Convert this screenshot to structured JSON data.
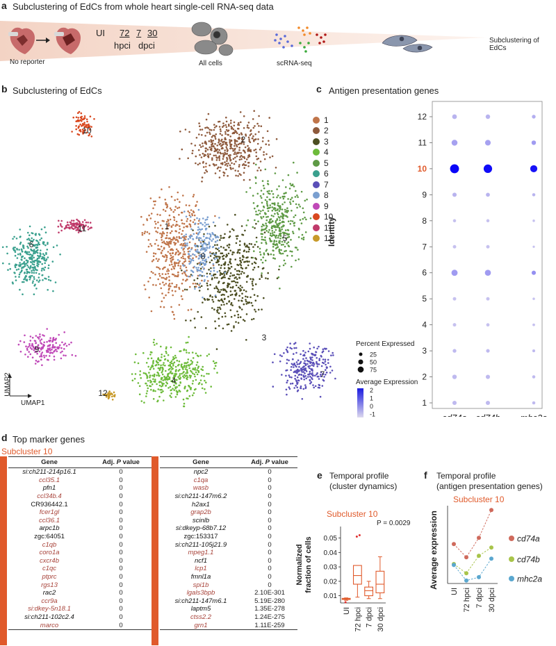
{
  "panel_a": {
    "letter": "a",
    "title": "Subclustering of EdCs from whole heart single-cell RNA-seq data",
    "no_reporter": "No reporter",
    "ui": "UI",
    "hpci_label": "hpci",
    "dpci_label": "dpci",
    "hpci_val": "72",
    "dpci_vals": [
      "7",
      "30"
    ],
    "all_cells": "All cells",
    "scrna": "scRNA-seq",
    "end_label": "Subclustering of EdCs"
  },
  "panel_b": {
    "letter": "b",
    "title": "Subclustering of EdCs",
    "umap1": "UMAP1",
    "umap2": "UMAP2",
    "clusters": [
      {
        "id": "1",
        "color": "#c0754a"
      },
      {
        "id": "2",
        "color": "#8e5a3c"
      },
      {
        "id": "3",
        "color": "#4c4e22"
      },
      {
        "id": "4",
        "color": "#6dbb3a"
      },
      {
        "id": "5",
        "color": "#5e9a45"
      },
      {
        "id": "6",
        "color": "#3aa08e"
      },
      {
        "id": "7",
        "color": "#5a4fb8"
      },
      {
        "id": "8",
        "color": "#7a9fd0"
      },
      {
        "id": "9",
        "color": "#c049b8"
      },
      {
        "id": "10",
        "color": "#d9481f"
      },
      {
        "id": "11",
        "color": "#c03a6a"
      },
      {
        "id": "12",
        "color": "#c89a2a"
      }
    ]
  },
  "panel_c": {
    "letter": "c",
    "title": "Antigen presentation genes",
    "ylabel": "Identity",
    "genes": [
      "cd74a",
      "cd74b",
      "mhc2a"
    ],
    "identities": [
      "12",
      "11",
      "10",
      "9",
      "8",
      "7",
      "6",
      "5",
      "4",
      "3",
      "2",
      "1"
    ],
    "highlight": "10",
    "legend_pct_title": "Percent Expressed",
    "legend_pct": [
      "25",
      "50",
      "75"
    ],
    "legend_avg_title": "Average Expression",
    "legend_avg_ticks": [
      "2",
      "1",
      "0",
      "-1"
    ]
  },
  "panel_d": {
    "letter": "d",
    "title": "Top marker genes",
    "subcluster": "Subcluster 10",
    "col_gene": "Gene",
    "col_p_prefix": "Adj. ",
    "col_p_italic": "P",
    "col_p_suffix": " value",
    "left_rows": [
      {
        "gene": "si:ch211-214p16.1",
        "p": "0",
        "style": "blk ital"
      },
      {
        "gene": "ccl35.1",
        "p": "0",
        "style": "red"
      },
      {
        "gene": "pfn1",
        "p": "0",
        "style": "blk ital"
      },
      {
        "gene": "ccl34b.4",
        "p": "0",
        "style": "red"
      },
      {
        "gene": "CR936442.1",
        "p": "0",
        "style": "blk"
      },
      {
        "gene": "fcer1gl",
        "p": "0",
        "style": "red"
      },
      {
        "gene": "ccl36.1",
        "p": "0",
        "style": "red"
      },
      {
        "gene": "arpc1b",
        "p": "0",
        "style": "blk ital"
      },
      {
        "gene": "zgc:64051",
        "p": "0",
        "style": "blk"
      },
      {
        "gene": "c1qb",
        "p": "0",
        "style": "red"
      },
      {
        "gene": "coro1a",
        "p": "0",
        "style": "red"
      },
      {
        "gene": "cxcr4b",
        "p": "0",
        "style": "red"
      },
      {
        "gene": "c1qc",
        "p": "0",
        "style": "red"
      },
      {
        "gene": "ptprc",
        "p": "0",
        "style": "red"
      },
      {
        "gene": "rgs13",
        "p": "0",
        "style": "red"
      },
      {
        "gene": "rac2",
        "p": "0",
        "style": "blk ital"
      },
      {
        "gene": "ccr9a",
        "p": "0",
        "style": "red"
      },
      {
        "gene": "si:dkey-5n18.1",
        "p": "0",
        "style": "red"
      },
      {
        "gene": "si:ch211-102c2.4",
        "p": "0",
        "style": "blk ital"
      },
      {
        "gene": "marco",
        "p": "0",
        "style": "red"
      }
    ],
    "right_rows": [
      {
        "gene": "npc2",
        "p": "0",
        "style": "blk ital"
      },
      {
        "gene": "c1qa",
        "p": "0",
        "style": "red"
      },
      {
        "gene": "wasb",
        "p": "0",
        "style": "red"
      },
      {
        "gene": "si:ch211-147m6.2",
        "p": "0",
        "style": "blk ital"
      },
      {
        "gene": "h2ax1",
        "p": "0",
        "style": "blk ital"
      },
      {
        "gene": "grap2b",
        "p": "0",
        "style": "red"
      },
      {
        "gene": "scinlb",
        "p": "0",
        "style": "blk ital"
      },
      {
        "gene": "si:dkeyp-68b7.12",
        "p": "0",
        "style": "blk ital"
      },
      {
        "gene": "zgc:153317",
        "p": "0",
        "style": "blk"
      },
      {
        "gene": "si:ch211-105j21.9",
        "p": "0",
        "style": "blk ital"
      },
      {
        "gene": "mpeg1.1",
        "p": "0",
        "style": "red"
      },
      {
        "gene": "ncf1",
        "p": "0",
        "style": "blk ital"
      },
      {
        "gene": "lcp1",
        "p": "0",
        "style": "red"
      },
      {
        "gene": "fmnl1a",
        "p": "0",
        "style": "blk ital"
      },
      {
        "gene": "spi1b",
        "p": "0",
        "style": "red"
      },
      {
        "gene": "lgals3bpb",
        "p": "2.10E-301",
        "style": "red"
      },
      {
        "gene": "si:ch211-147m6.1",
        "p": "5.19E-280",
        "style": "blk ital"
      },
      {
        "gene": "laptm5",
        "p": "1.35E-278",
        "style": "blk ital"
      },
      {
        "gene": "ctss2.2",
        "p": "1.24E-275",
        "style": "red"
      },
      {
        "gene": "grn1",
        "p": "1.11E-259",
        "style": "red"
      }
    ]
  },
  "panel_e": {
    "letter": "e",
    "title_line1": "Temporal profile",
    "title_line2": "(cluster dynamics)",
    "subcluster": "Subcluster 10",
    "pvalue": "P = 0.0029",
    "ylabel_line1": "Normalized",
    "ylabel_line2": "fraction of cells"
  },
  "panel_f": {
    "letter": "f",
    "title_line1": "Temporal profile",
    "title_line2": "(antigen presentation genes)",
    "subcluster": "Subcluster 10",
    "ylabel": "Average expression"
  },
  "chart_data": [
    {
      "type": "scatter",
      "title": "Antigen presentation genes",
      "ylabel": "Identity",
      "x": [
        "cd74a",
        "cd74b",
        "mhc2a"
      ],
      "series": [
        {
          "name": "cd74a",
          "identity": [
            12,
            11,
            10,
            9,
            8,
            7,
            6,
            5,
            4,
            3,
            2,
            1
          ],
          "pct": [
            22,
            35,
            80,
            18,
            10,
            12,
            38,
            12,
            12,
            14,
            20,
            18
          ],
          "avg": [
            -0.6,
            -0.3,
            2.2,
            -0.6,
            -0.8,
            -0.8,
            -0.2,
            -0.8,
            -0.8,
            -0.7,
            -0.7,
            -0.7
          ]
        },
        {
          "name": "cd74b",
          "identity": [
            12,
            11,
            10,
            9,
            8,
            7,
            6,
            5,
            4,
            3,
            2,
            1
          ],
          "pct": [
            20,
            32,
            72,
            16,
            10,
            12,
            36,
            12,
            11,
            13,
            18,
            18
          ],
          "avg": [
            -0.6,
            -0.3,
            2.1,
            -0.6,
            -0.8,
            -0.8,
            -0.2,
            -0.8,
            -0.8,
            -0.7,
            -0.7,
            -0.7
          ]
        },
        {
          "name": "mhc2a",
          "identity": [
            12,
            11,
            10,
            9,
            8,
            7,
            6,
            5,
            4,
            3,
            2,
            1
          ],
          "pct": [
            14,
            20,
            50,
            10,
            6,
            5,
            18,
            6,
            7,
            8,
            10,
            10
          ],
          "avg": [
            -0.5,
            -0.2,
            2.0,
            -0.6,
            -0.8,
            -0.8,
            0.0,
            -0.8,
            -0.8,
            -0.7,
            -0.7,
            -0.7
          ]
        }
      ],
      "legend": {
        "percent": [
          25,
          50,
          75
        ],
        "average_ticks": [
          2,
          1,
          0,
          -1
        ]
      }
    },
    {
      "type": "box",
      "title": "Subcluster 10",
      "categories": [
        "UI",
        "72 hpci",
        "7 dpci",
        "30 dpci"
      ],
      "ylabel": "Normalized fraction of cells",
      "ylim": [
        0.005,
        0.058
      ],
      "yticks": [
        0.01,
        0.02,
        0.03,
        0.04,
        0.05
      ],
      "boxes": [
        {
          "min": 0.0068,
          "q1": 0.0074,
          "median": 0.0078,
          "q3": 0.0082,
          "max": 0.0085,
          "outliers": [
            0.0055
          ]
        },
        {
          "min": 0.009,
          "q1": 0.018,
          "median": 0.024,
          "q3": 0.031,
          "max": 0.031,
          "outliers": [
            0.051,
            0.052
          ]
        },
        {
          "min": 0.008,
          "q1": 0.01,
          "median": 0.0135,
          "q3": 0.016,
          "max": 0.02,
          "outliers": []
        },
        {
          "min": 0.008,
          "q1": 0.012,
          "median": 0.018,
          "q3": 0.027,
          "max": 0.037,
          "outliers": []
        }
      ],
      "annotation": "P = 0.0029"
    },
    {
      "type": "line",
      "title": "Subcluster 10",
      "categories": [
        "UI",
        "72 hpci",
        "7 dpci",
        "30 dpci"
      ],
      "ylabel": "Average expression",
      "ylim": [
        1,
        17
      ],
      "series": [
        {
          "name": "cd74a",
          "color": "#cf6a5c",
          "values": [
            9.1,
            6.4,
            10.4,
            16.1
          ]
        },
        {
          "name": "cd74b",
          "color": "#a8c44a",
          "values": [
            5.0,
            3.1,
            6.7,
            8.4
          ]
        },
        {
          "name": "mhc2a",
          "color": "#5aa7cf",
          "values": [
            4.8,
            1.6,
            2.3,
            6.1
          ]
        }
      ]
    }
  ]
}
